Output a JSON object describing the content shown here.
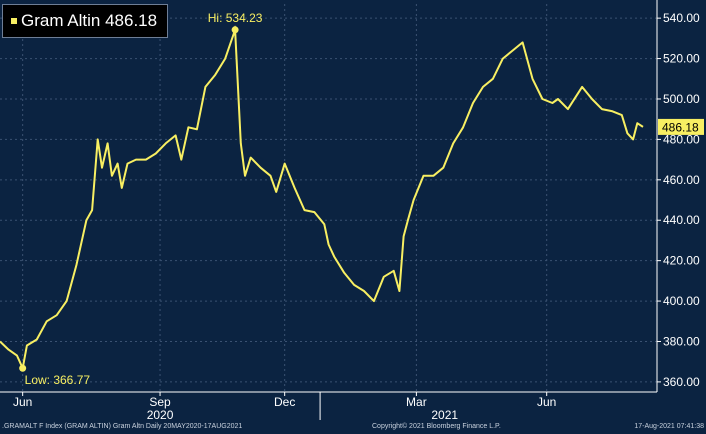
{
  "legend": {
    "label": "Gram Altin",
    "value": "486.18"
  },
  "footer": {
    "left": ".GRAMALT F Index (GRAM ALTIN) Gram Altn  Daily 20MAY2020-17AUG2021",
    "center": "Copyright© 2021 Bloomberg Finance L.P.",
    "right": "17-Aug-2021 07:41:38"
  },
  "colors": {
    "background": "#0b2341",
    "grid": "#3b5272",
    "line": "#f8ef62",
    "axis_text": "#ffffff"
  },
  "chart_data": {
    "type": "line",
    "title": "Gram Altin 486.18",
    "series": [
      {
        "name": "Gram Altin",
        "x": [
          "2020-05-20",
          "2020-05-26",
          "2020-06-01",
          "2020-06-05",
          "2020-06-08",
          "2020-06-15",
          "2020-06-22",
          "2020-06-29",
          "2020-07-06",
          "2020-07-13",
          "2020-07-20",
          "2020-07-24",
          "2020-07-28",
          "2020-07-31",
          "2020-08-04",
          "2020-08-07",
          "2020-08-11",
          "2020-08-14",
          "2020-08-18",
          "2020-08-24",
          "2020-08-31",
          "2020-09-07",
          "2020-09-14",
          "2020-09-21",
          "2020-09-25",
          "2020-09-30",
          "2020-10-06",
          "2020-10-12",
          "2020-10-19",
          "2020-10-26",
          "2020-11-02",
          "2020-11-06",
          "2020-11-09",
          "2020-11-13",
          "2020-11-20",
          "2020-11-27",
          "2020-12-01",
          "2020-12-07",
          "2020-12-14",
          "2020-12-21",
          "2020-12-28",
          "2021-01-04",
          "2021-01-07",
          "2021-01-11",
          "2021-01-18",
          "2021-01-25",
          "2021-02-01",
          "2021-02-08",
          "2021-02-15",
          "2021-02-22",
          "2021-02-26",
          "2021-03-01",
          "2021-03-04",
          "2021-03-08",
          "2021-03-15",
          "2021-03-22",
          "2021-03-29",
          "2021-04-05",
          "2021-04-12",
          "2021-04-19",
          "2021-04-26",
          "2021-05-03",
          "2021-05-10",
          "2021-05-17",
          "2021-05-24",
          "2021-05-31",
          "2021-06-07",
          "2021-06-14",
          "2021-06-18",
          "2021-06-25",
          "2021-07-05",
          "2021-07-12",
          "2021-07-19",
          "2021-07-26",
          "2021-08-02",
          "2021-08-06",
          "2021-08-10",
          "2021-08-13",
          "2021-08-17"
        ],
        "values": [
          380,
          376,
          373,
          366.77,
          378,
          381,
          390,
          393,
          400,
          418,
          440,
          445,
          480,
          466,
          478,
          462,
          468,
          456,
          468,
          470,
          470,
          473,
          478,
          482,
          470,
          486,
          485,
          506,
          512,
          520,
          534.23,
          478,
          462,
          471,
          466,
          462,
          454,
          468,
          456,
          445,
          444,
          438,
          428,
          422,
          414,
          408,
          405,
          400,
          412,
          415,
          405,
          432,
          440,
          450,
          462,
          462,
          466,
          478,
          486,
          498,
          506,
          510,
          520,
          524,
          528,
          510,
          500,
          498,
          500,
          495,
          506,
          500,
          495,
          494,
          492,
          483,
          480,
          488,
          486.18
        ]
      }
    ],
    "y_ticks": [
      "360.00",
      "380.00",
      "400.00",
      "420.00",
      "440.00",
      "460.00",
      "480.00",
      "500.00",
      "520.00",
      "540.00"
    ],
    "ylim": [
      355,
      547
    ],
    "xlim": [
      "2020-05-20",
      "2021-08-17"
    ],
    "x_ticks": [
      {
        "date": "2020-06-05",
        "label": "Jun"
      },
      {
        "date": "2020-09-10",
        "label": "Sep"
      },
      {
        "date": "2020-12-07",
        "label": "Dec"
      },
      {
        "date": "2021-03-10",
        "label": "Mar"
      },
      {
        "date": "2021-06-10",
        "label": "Jun"
      }
    ],
    "year_labels": [
      {
        "date": "2020-09-10",
        "label": "2020"
      },
      {
        "date": "2021-03-30",
        "label": "2021"
      }
    ],
    "year_dividers": [
      "2021-01-01"
    ],
    "annotations": [
      {
        "date": "2020-11-02",
        "value": 534.23,
        "text": "Hi: 534.23",
        "position": "above"
      },
      {
        "date": "2020-06-05",
        "value": 366.77,
        "text": "Low: 366.77",
        "position": "below-right"
      }
    ],
    "last_value": {
      "value": 486.18,
      "text": "486.18"
    },
    "grid": true,
    "y_axis_side": "right",
    "legend_position": "top-left"
  }
}
